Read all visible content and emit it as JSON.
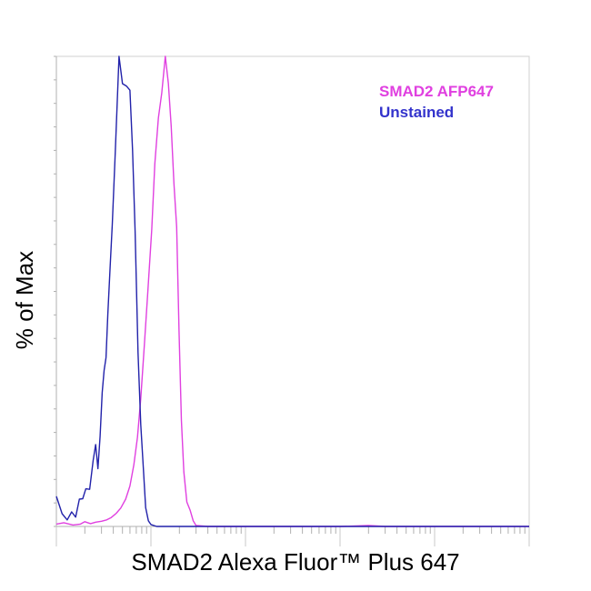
{
  "chart_data": {
    "type": "line",
    "title": "",
    "xlabel": "SMAD2 Alexa Fluor™ Plus 647",
    "ylabel": "% of Max",
    "x_scale": "log",
    "xlim": [
      1,
      100000
    ],
    "ylim": [
      0,
      100
    ],
    "grid": false,
    "legend_position": "top-right",
    "series": [
      {
        "name": "SMAD2 AFP647",
        "color": "#e040e0",
        "points": [
          [
            1.0,
            0.5
          ],
          [
            1.2,
            0.8
          ],
          [
            1.5,
            0.3
          ],
          [
            1.8,
            0.5
          ],
          [
            2.0,
            1.0
          ],
          [
            2.3,
            0.6
          ],
          [
            2.6,
            0.9
          ],
          [
            3.0,
            1.1
          ],
          [
            3.4,
            1.4
          ],
          [
            3.8,
            1.9
          ],
          [
            4.3,
            2.8
          ],
          [
            4.8,
            3.9
          ],
          [
            5.4,
            5.8
          ],
          [
            6.0,
            8.6
          ],
          [
            6.6,
            13.1
          ],
          [
            7.2,
            19.0
          ],
          [
            7.8,
            27.2
          ],
          [
            8.5,
            38.4
          ],
          [
            9.3,
            50.3
          ],
          [
            10.2,
            63.2
          ],
          [
            11.0,
            77.2
          ],
          [
            12.0,
            86.9
          ],
          [
            13.0,
            92.2
          ],
          [
            14.2,
            100.0
          ],
          [
            15.3,
            94.2
          ],
          [
            16.4,
            85.1
          ],
          [
            17.5,
            73.0
          ],
          [
            18.7,
            63.7
          ],
          [
            19.8,
            41.6
          ],
          [
            21.0,
            22.6
          ],
          [
            22.3,
            11.6
          ],
          [
            24.0,
            5.2
          ],
          [
            26.0,
            3.4
          ],
          [
            28.0,
            1.2
          ],
          [
            30.0,
            0.2
          ],
          [
            40.0,
            0.0
          ],
          [
            100.0,
            0.0
          ],
          [
            1000.0,
            0.0
          ],
          [
            2000.0,
            0.2
          ],
          [
            3000.0,
            0.0
          ],
          [
            10000.0,
            0.0
          ],
          [
            100000.0,
            0.0
          ]
        ]
      },
      {
        "name": "Unstained",
        "color": "#2222aa",
        "points": [
          [
            1.0,
            6.4
          ],
          [
            1.15,
            2.7
          ],
          [
            1.3,
            1.4
          ],
          [
            1.45,
            3.1
          ],
          [
            1.6,
            2.0
          ],
          [
            1.75,
            5.8
          ],
          [
            1.9,
            5.9
          ],
          [
            2.05,
            8.0
          ],
          [
            2.25,
            7.9
          ],
          [
            2.45,
            14.1
          ],
          [
            2.6,
            17.4
          ],
          [
            2.75,
            12.3
          ],
          [
            2.9,
            19.2
          ],
          [
            3.05,
            28.5
          ],
          [
            3.2,
            33.2
          ],
          [
            3.35,
            35.9
          ],
          [
            3.5,
            45.2
          ],
          [
            3.7,
            55.1
          ],
          [
            3.9,
            64.3
          ],
          [
            4.2,
            79.7
          ],
          [
            4.6,
            100.0
          ],
          [
            5.0,
            94.2
          ],
          [
            5.5,
            93.7
          ],
          [
            6.0,
            92.8
          ],
          [
            6.4,
            80.0
          ],
          [
            6.8,
            62.8
          ],
          [
            7.3,
            37.0
          ],
          [
            7.8,
            21.7
          ],
          [
            8.3,
            12.6
          ],
          [
            8.8,
            4.0
          ],
          [
            9.4,
            1.2
          ],
          [
            10.0,
            0.4
          ],
          [
            11.5,
            0.0
          ],
          [
            15.0,
            0.0
          ],
          [
            100.0,
            0.0
          ],
          [
            1000.0,
            0.0
          ],
          [
            100000.0,
            0.0
          ]
        ]
      }
    ],
    "legend": [
      {
        "label": "SMAD2 AFP647",
        "color": "#e040e0"
      },
      {
        "label": "Unstained",
        "color": "#3333cc"
      }
    ]
  }
}
